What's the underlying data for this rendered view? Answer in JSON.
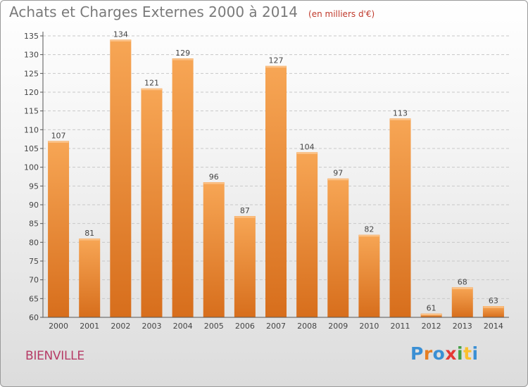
{
  "header": {
    "title": "Achats et Charges Externes 2000 à 2014",
    "unit": "(en milliers d'€)"
  },
  "footer": {
    "place": "BIENVILLE",
    "brand": [
      "P",
      "r",
      "o",
      "x",
      "i",
      "t",
      "i"
    ]
  },
  "colors": {
    "bar_light": "#f7a655",
    "bar_dark": "#d76e1c",
    "grid": "#c8c8c8",
    "axis": "#555555",
    "title": "#7a7a7a",
    "place": "#b63b66"
  },
  "chart_data": {
    "type": "bar",
    "title": "Achats et Charges Externes 2000 à 2014",
    "subtitle": "(en milliers d'€)",
    "xlabel": "",
    "ylabel": "",
    "categories": [
      "2000",
      "2001",
      "2002",
      "2003",
      "2004",
      "2005",
      "2006",
      "2007",
      "2008",
      "2009",
      "2010",
      "2011",
      "2012",
      "2013",
      "2014"
    ],
    "values": [
      107,
      81,
      134,
      121,
      129,
      96,
      87,
      127,
      104,
      97,
      82,
      113,
      61,
      68,
      63
    ],
    "ylim": [
      60,
      135
    ],
    "yticks": [
      60,
      65,
      70,
      75,
      80,
      85,
      90,
      95,
      100,
      105,
      110,
      115,
      120,
      125,
      130,
      135
    ],
    "grid": true,
    "legend": "none"
  }
}
